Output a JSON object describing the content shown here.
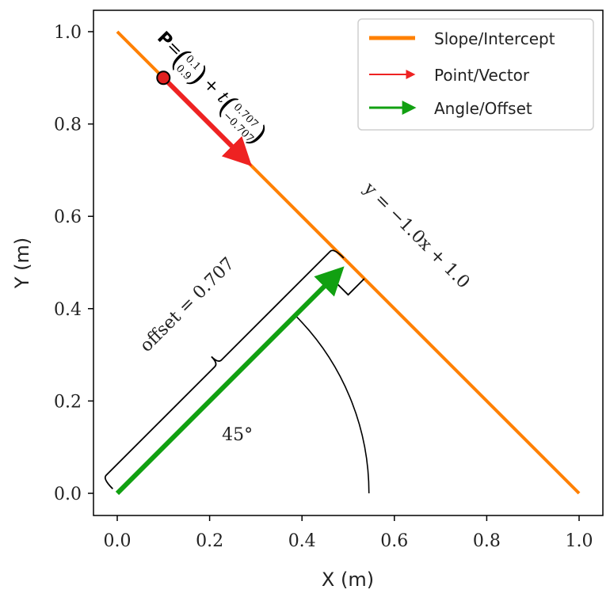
{
  "chart_data": {
    "type": "line",
    "title": "",
    "xlabel": "X (m)",
    "ylabel": "Y (m)",
    "xlim": [
      -0.05,
      1.05
    ],
    "ylim": [
      -0.05,
      1.05
    ],
    "grid": false,
    "x_ticks": [
      0.0,
      0.2,
      0.4,
      0.6,
      0.8,
      1.0
    ],
    "y_ticks": [
      0.0,
      0.2,
      0.4,
      0.6,
      0.8,
      1.0
    ],
    "x_tick_labels": [
      "0.0",
      "0.2",
      "0.4",
      "0.6",
      "0.8",
      "1.0"
    ],
    "y_tick_labels": [
      "0.0",
      "0.2",
      "0.4",
      "0.6",
      "0.8",
      "1.0"
    ],
    "line": {
      "name": "Slope/Intercept",
      "x": [
        0.0,
        1.0
      ],
      "y": [
        1.0,
        0.0
      ],
      "color": "#ff8000"
    },
    "point_vector": {
      "name": "Point/Vector",
      "point": [
        0.1,
        0.9
      ],
      "end": [
        0.3,
        0.7
      ],
      "color": "#ee2222",
      "point_fill": "#e02020"
    },
    "angle_offset": {
      "name": "Angle/Offset",
      "start": [
        0.0,
        0.0
      ],
      "end": [
        0.5,
        0.5
      ],
      "color": "#11a011"
    },
    "angle_arc": {
      "radius": 0.545,
      "from_deg": 0,
      "to_deg": 45
    },
    "right_angle_marker": {
      "size": 0.07
    },
    "legend": {
      "position": "top-right",
      "entries": [
        {
          "label": "Slope/Intercept",
          "color": "#ff8000",
          "style": "line"
        },
        {
          "label": "Point/Vector",
          "color": "#ee2222",
          "style": "arrow"
        },
        {
          "label": "Angle/Offset",
          "color": "#11a011",
          "style": "arrow"
        }
      ]
    },
    "annotations": {
      "line_equation": "y = −1.0x + 1.0",
      "angle_label": "45°",
      "offset_label": "offset = 0.707",
      "param_eq": {
        "p_label": "P",
        "eq": "=",
        "point_top": "0.1",
        "point_bottom": "0.9",
        "plus_t": "+ t",
        "vec_top": "0.707",
        "vec_bottom": "−0.707"
      }
    }
  }
}
